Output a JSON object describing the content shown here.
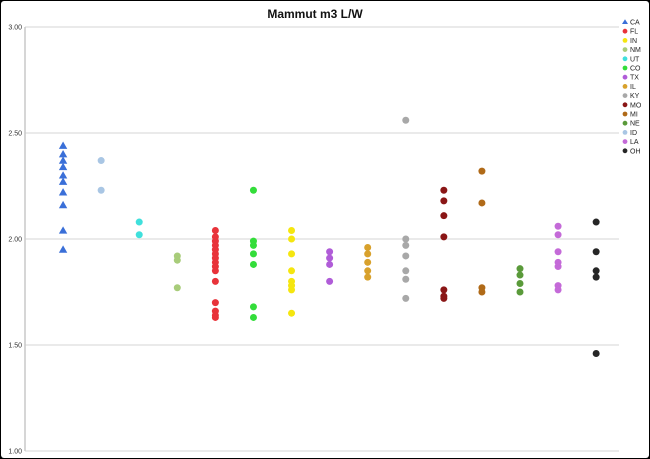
{
  "chart_data": {
    "type": "scatter",
    "title": "Mammut m3 L/W",
    "xlabel": "",
    "ylabel": "",
    "ylim": [
      1.0,
      3.0
    ],
    "y_ticks": [
      "1.00",
      "1.50",
      "2.00",
      "2.50",
      "3.00"
    ],
    "grid": true,
    "legend_position": "right",
    "series": [
      {
        "name": "CA",
        "color": "#3a6fd8",
        "marker": "triangle",
        "x": 1,
        "values": [
          2.44,
          2.4,
          2.37,
          2.34,
          2.3,
          2.27,
          2.22,
          2.16,
          2.04,
          1.95
        ]
      },
      {
        "name": "FL",
        "color": "#e8333a",
        "marker": "circle",
        "x": 5,
        "values": [
          2.04,
          2.01,
          1.99,
          1.97,
          1.95,
          1.93,
          1.91,
          1.89,
          1.87,
          1.85,
          1.8,
          1.7,
          1.66,
          1.64,
          1.63
        ]
      },
      {
        "name": "IN",
        "color": "#f5e60f",
        "marker": "circle",
        "x": 7,
        "values": [
          2.04,
          2.0,
          1.93,
          1.85,
          1.8,
          1.78,
          1.76,
          1.65
        ]
      },
      {
        "name": "NM",
        "color": "#a8cc7a",
        "marker": "circle",
        "x": 4,
        "values": [
          1.92,
          1.9,
          1.77
        ]
      },
      {
        "name": "UT",
        "color": "#3fe0dc",
        "marker": "circle",
        "x": 3,
        "values": [
          2.08,
          2.02
        ]
      },
      {
        "name": "CO",
        "color": "#33dd3a",
        "marker": "circle",
        "x": 6,
        "values": [
          2.23,
          1.99,
          1.97,
          1.93,
          1.88,
          1.68,
          1.63
        ]
      },
      {
        "name": "TX",
        "color": "#b05cd8",
        "marker": "circle",
        "x": 8,
        "values": [
          1.94,
          1.91,
          1.88,
          1.8
        ]
      },
      {
        "name": "IL",
        "color": "#d8a12c",
        "marker": "circle",
        "x": 9,
        "values": [
          1.96,
          1.93,
          1.89,
          1.85,
          1.82
        ]
      },
      {
        "name": "KY",
        "color": "#a8a8a8",
        "marker": "circle",
        "x": 10,
        "values": [
          2.56,
          2.0,
          1.97,
          1.92,
          1.85,
          1.81,
          1.72
        ]
      },
      {
        "name": "MO",
        "color": "#8a1616",
        "marker": "circle",
        "x": 11,
        "values": [
          2.23,
          2.18,
          2.11,
          2.01,
          1.76,
          1.73,
          1.72
        ]
      },
      {
        "name": "MI",
        "color": "#b06a18",
        "marker": "circle",
        "x": 12,
        "values": [
          2.32,
          2.17,
          1.77,
          1.75
        ]
      },
      {
        "name": "NE",
        "color": "#5a9a3a",
        "marker": "circle",
        "x": 13,
        "values": [
          1.86,
          1.83,
          1.79,
          1.75
        ]
      },
      {
        "name": "ID",
        "color": "#a9c6e4",
        "marker": "circle",
        "x": 2,
        "values": [
          2.37,
          2.23
        ]
      },
      {
        "name": "LA",
        "color": "#c46ad8",
        "marker": "circle",
        "x": 14,
        "values": [
          2.06,
          2.02,
          1.94,
          1.89,
          1.87,
          1.78,
          1.76
        ]
      },
      {
        "name": "OH",
        "color": "#262626",
        "marker": "circle",
        "x": 15,
        "values": [
          2.08,
          1.94,
          1.85,
          1.82,
          1.46
        ]
      }
    ]
  }
}
